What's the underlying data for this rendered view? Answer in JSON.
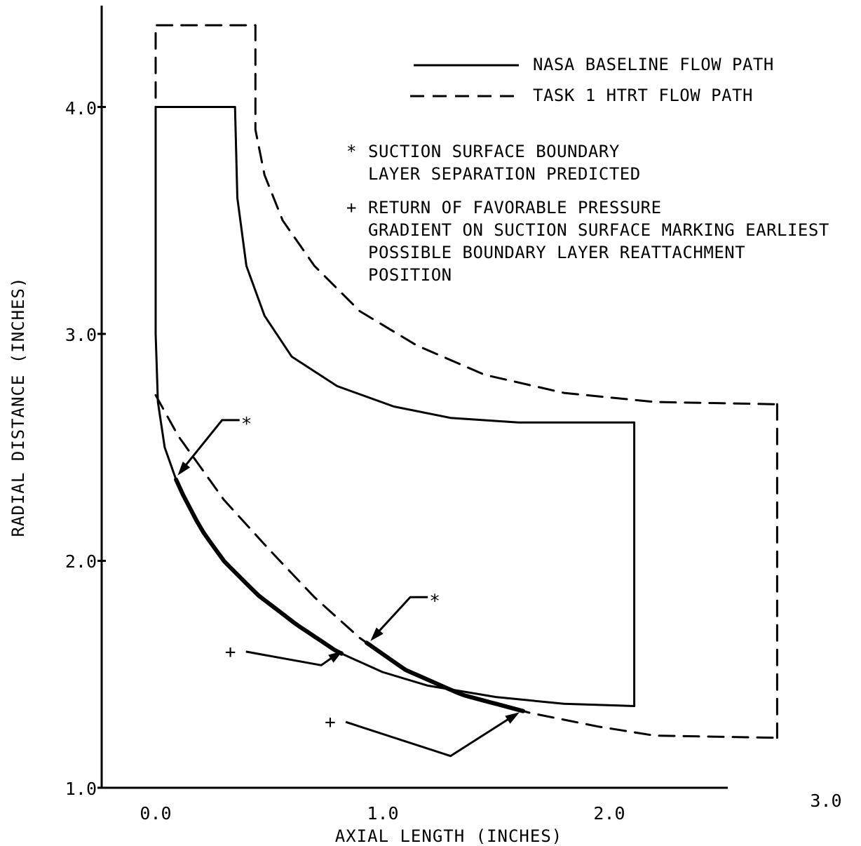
{
  "chart_data": {
    "type": "line",
    "title": "",
    "xlabel": "AXIAL LENGTH (INCHES)",
    "ylabel": "RADIAL DISTANCE (INCHES)",
    "xlim": [
      0.0,
      2.5
    ],
    "ylim": [
      1.0,
      4.4
    ],
    "x_ticks": [
      "0.0",
      "1.0",
      "2.0",
      "3.0"
    ],
    "y_ticks": [
      "1.0",
      "2.0",
      "3.0",
      "4.0"
    ],
    "grid": false,
    "legend_position": "top-right",
    "legend": [
      {
        "label": "NASA BASELINE FLOW PATH",
        "style": "solid"
      },
      {
        "label": "TASK 1 HTRT FLOW PATH",
        "style": "dashed"
      }
    ],
    "notes": [
      {
        "symbol": "*",
        "lines": [
          "SUCTION SURFACE BOUNDARY",
          "LAYER SEPARATION PREDICTED"
        ]
      },
      {
        "symbol": "+",
        "lines": [
          "RETURN OF FAVORABLE PRESSURE",
          "GRADIENT ON SUCTION SURFACE MARKING EARLIEST",
          "POSSIBLE BOUNDARY LAYER REATTACHMENT",
          "POSITION"
        ]
      }
    ],
    "series": [
      {
        "name": "NASA BASELINE FLOW PATH",
        "style": "solid",
        "shroud": [
          [
            0.0,
            3.0
          ],
          [
            0.0,
            4.0
          ],
          [
            0.35,
            4.0
          ],
          [
            0.36,
            3.6
          ],
          [
            0.4,
            3.3
          ],
          [
            0.48,
            3.08
          ],
          [
            0.6,
            2.9
          ],
          [
            0.8,
            2.77
          ],
          [
            1.05,
            2.68
          ],
          [
            1.3,
            2.63
          ],
          [
            1.6,
            2.61
          ],
          [
            2.11,
            2.61
          ]
        ],
        "hub": [
          [
            0.0,
            3.0
          ],
          [
            0.01,
            2.7
          ],
          [
            0.04,
            2.5
          ],
          [
            0.1,
            2.33
          ],
          [
            0.2,
            2.14
          ],
          [
            0.3,
            2.0
          ],
          [
            0.45,
            1.85
          ],
          [
            0.62,
            1.72
          ],
          [
            0.8,
            1.6
          ],
          [
            1.0,
            1.51
          ],
          [
            1.2,
            1.45
          ],
          [
            1.5,
            1.4
          ],
          [
            1.8,
            1.37
          ],
          [
            2.11,
            1.36
          ]
        ],
        "exit": [
          [
            2.11,
            2.61
          ],
          [
            2.11,
            1.36
          ]
        ]
      },
      {
        "name": "TASK 1 HTRT FLOW PATH",
        "style": "dashed",
        "shroud": [
          [
            0.0,
            3.5
          ],
          [
            0.0,
            4.36
          ],
          [
            0.44,
            4.36
          ],
          [
            0.44,
            3.9
          ],
          [
            0.48,
            3.7
          ],
          [
            0.56,
            3.5
          ],
          [
            0.7,
            3.3
          ],
          [
            0.9,
            3.1
          ],
          [
            1.15,
            2.95
          ],
          [
            1.45,
            2.82
          ],
          [
            1.8,
            2.74
          ],
          [
            2.2,
            2.7
          ],
          [
            2.74,
            2.69
          ]
        ],
        "hub": [
          [
            0.0,
            2.73
          ],
          [
            0.1,
            2.55
          ],
          [
            0.3,
            2.27
          ],
          [
            0.5,
            2.05
          ],
          [
            0.7,
            1.84
          ],
          [
            0.9,
            1.66
          ],
          [
            1.1,
            1.52
          ],
          [
            1.35,
            1.41
          ],
          [
            1.65,
            1.33
          ],
          [
            1.95,
            1.27
          ],
          [
            2.2,
            1.23
          ],
          [
            2.74,
            1.22
          ]
        ],
        "exit": [
          [
            2.74,
            2.69
          ],
          [
            2.74,
            1.22
          ]
        ]
      }
    ],
    "annotations": [
      {
        "symbol": "*",
        "point": [
          0.1,
          2.38
        ],
        "label_at": [
          0.37,
          2.62
        ]
      },
      {
        "symbol": "*",
        "point": [
          0.95,
          1.65
        ],
        "label_at": [
          1.2,
          1.84
        ]
      },
      {
        "symbol": "+",
        "point": [
          0.82,
          1.6
        ],
        "label_at": [
          0.33,
          1.6
        ]
      },
      {
        "symbol": "+",
        "point": [
          1.6,
          1.33
        ],
        "label_at": [
          0.77,
          1.29
        ]
      }
    ],
    "emphasis_segments": [
      {
        "x_from": 0.09,
        "x_to": 0.82,
        "series": "NASA BASELINE FLOW PATH hub"
      },
      {
        "x_from": 0.93,
        "x_to": 1.62,
        "series": "TASK 1 HTRT FLOW PATH hub"
      }
    ]
  }
}
